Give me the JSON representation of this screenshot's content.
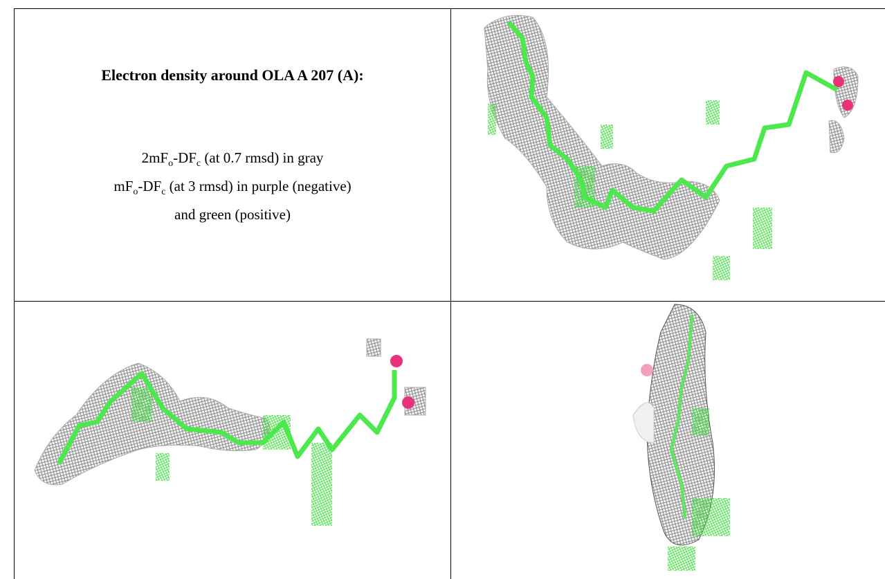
{
  "table": {
    "title": "Electron density around OLA A 207 (A):",
    "caption": {
      "lines": [
        [
          "2mF",
          "o",
          "-DF",
          "c",
          " (at 0.7 rmsd) in gray"
        ],
        [
          "mF",
          "o",
          "-DF",
          "c",
          " (at 3 rmsd) in purple (negative)"
        ],
        [
          "and green (positive)"
        ]
      ]
    }
  }
}
